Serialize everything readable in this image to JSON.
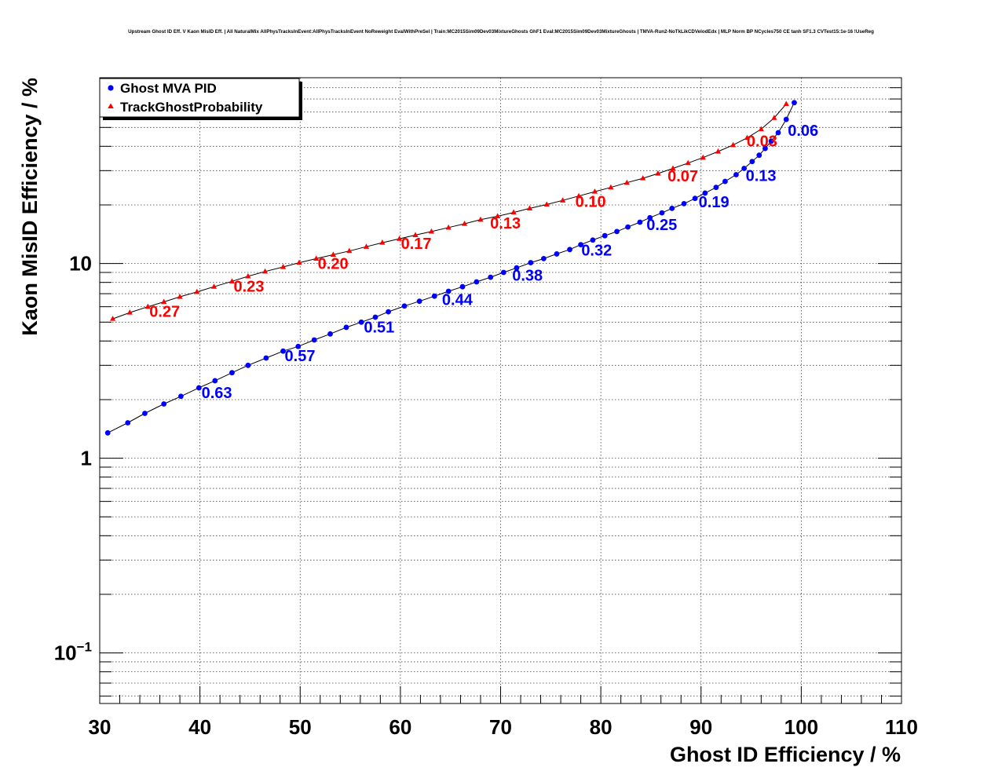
{
  "chart_data": {
    "type": "line",
    "title": "Upstream Ghost ID Eff. V Kaon MisID Eff. | All NaturalMix AllPhysTracksInEvent:AllPhysTracksInEvent NoReweight EvalWithPreSel | Train:MC2015Sim09Dev03MixtureGhosts GhF1 Eval:MC2015Sim09Dev03MixtureGhosts | TMVA-Run2-NoTkLikCDVelodEdx | MLP Norm BP NCycles750 CE tanh SF1.3 CVTest15:1e-16 !UseReg",
    "xlabel": "Ghost ID Efficiency / %",
    "ylabel": "Kaon MisID Efficiency / %",
    "xlim": [
      30,
      110
    ],
    "ylim": [
      0.055,
      90
    ],
    "yscale": "log",
    "grid": true,
    "legend_position": "top-left",
    "x_ticks": [
      "30",
      "40",
      "50",
      "60",
      "70",
      "80",
      "90",
      "100",
      "110"
    ],
    "y_ticks": [
      {
        "base": "10",
        "exp": "",
        "value": 10
      },
      {
        "base": "1",
        "exp": "",
        "value": 1
      },
      {
        "base": "10",
        "exp": "−1",
        "value": 0.1
      }
    ],
    "series": [
      {
        "name": "Ghost MVA PID",
        "color": "#0000ff",
        "marker": "circle",
        "x": [
          30.8,
          32.8,
          34.5,
          36.4,
          38.1,
          39.9,
          41.5,
          43.2,
          44.8,
          46.6,
          48.3,
          49.8,
          51.4,
          53.0,
          54.6,
          56.1,
          57.5,
          58.8,
          60.4,
          61.9,
          63.4,
          64.8,
          66.2,
          67.6,
          69.0,
          70.3,
          71.6,
          73.0,
          74.3,
          75.6,
          76.9,
          78.0,
          79.2,
          80.4,
          81.6,
          82.7,
          83.9,
          84.9,
          86.1,
          87.1,
          88.3,
          89.4,
          90.4,
          91.5,
          92.4,
          93.5,
          94.3,
          95.1,
          95.8,
          96.4,
          97.0,
          97.7,
          98.5,
          99.3
        ],
        "y": [
          1.35,
          1.52,
          1.7,
          1.9,
          2.08,
          2.3,
          2.5,
          2.75,
          3.0,
          3.27,
          3.55,
          3.75,
          4.05,
          4.35,
          4.7,
          5.0,
          5.3,
          5.65,
          6.05,
          6.4,
          6.8,
          7.2,
          7.6,
          8.05,
          8.5,
          9.0,
          9.5,
          10.1,
          10.6,
          11.2,
          11.8,
          12.5,
          13.2,
          13.9,
          14.6,
          15.4,
          16.3,
          17.2,
          18.2,
          19.2,
          20.3,
          21.6,
          23.0,
          24.6,
          26.4,
          28.6,
          30.8,
          33.4,
          36.0,
          39.0,
          42.5,
          47.0,
          55.0,
          67.0
        ]
      },
      {
        "name": "TrackGhostProbability",
        "color": "#ff0000",
        "marker": "triangle",
        "x": [
          31.3,
          33.0,
          34.8,
          36.4,
          38.0,
          39.7,
          41.4,
          43.2,
          44.8,
          46.5,
          48.3,
          49.9,
          51.6,
          53.3,
          54.9,
          56.6,
          58.2,
          59.9,
          61.5,
          63.1,
          64.8,
          66.4,
          68.0,
          69.7,
          71.3,
          72.9,
          74.6,
          76.2,
          77.8,
          79.4,
          81.0,
          82.6,
          84.2,
          85.7,
          87.2,
          88.7,
          90.2,
          91.7,
          93.2,
          94.6,
          96.0,
          97.3,
          98.5
        ],
        "y": [
          5.2,
          5.6,
          6.0,
          6.35,
          6.75,
          7.15,
          7.6,
          8.1,
          8.6,
          9.1,
          9.6,
          10.1,
          10.6,
          11.1,
          11.6,
          12.2,
          12.8,
          13.4,
          14.0,
          14.6,
          15.3,
          16.0,
          16.8,
          17.5,
          18.3,
          19.2,
          20.1,
          21.1,
          22.2,
          23.4,
          24.6,
          26.0,
          27.4,
          29.0,
          30.8,
          32.8,
          35.0,
          37.6,
          40.6,
          44.2,
          49.0,
          56.0,
          66.0
        ]
      }
    ],
    "annotations": [
      {
        "text": "0.63",
        "series": 0,
        "x": 40.0,
        "y": 2.3
      },
      {
        "text": "0.57",
        "series": 0,
        "x": 48.3,
        "y": 3.55
      },
      {
        "text": "0.51",
        "series": 0,
        "x": 56.2,
        "y": 5.0
      },
      {
        "text": "0.44",
        "series": 0,
        "x": 64.0,
        "y": 6.9
      },
      {
        "text": "0.38",
        "series": 0,
        "x": 71.0,
        "y": 9.2
      },
      {
        "text": "0.32",
        "series": 0,
        "x": 77.9,
        "y": 12.4
      },
      {
        "text": "0.25",
        "series": 0,
        "x": 84.4,
        "y": 16.8
      },
      {
        "text": "0.19",
        "series": 0,
        "x": 89.6,
        "y": 21.9
      },
      {
        "text": "0.13",
        "series": 0,
        "x": 94.3,
        "y": 30.0
      },
      {
        "text": "0.06",
        "series": 0,
        "x": 98.5,
        "y": 51.0
      },
      {
        "text": "0.27",
        "series": 1,
        "x": 34.8,
        "y": 6.0
      },
      {
        "text": "0.23",
        "series": 1,
        "x": 43.2,
        "y": 8.1
      },
      {
        "text": "0.20",
        "series": 1,
        "x": 51.6,
        "y": 10.6
      },
      {
        "text": "0.17",
        "series": 1,
        "x": 59.9,
        "y": 13.4
      },
      {
        "text": "0.13",
        "series": 1,
        "x": 68.8,
        "y": 17.1
      },
      {
        "text": "0.10",
        "series": 1,
        "x": 77.3,
        "y": 22.0
      },
      {
        "text": "0.07",
        "series": 1,
        "x": 86.5,
        "y": 29.8
      },
      {
        "text": "0.03",
        "series": 1,
        "x": 94.4,
        "y": 45.0
      }
    ]
  }
}
